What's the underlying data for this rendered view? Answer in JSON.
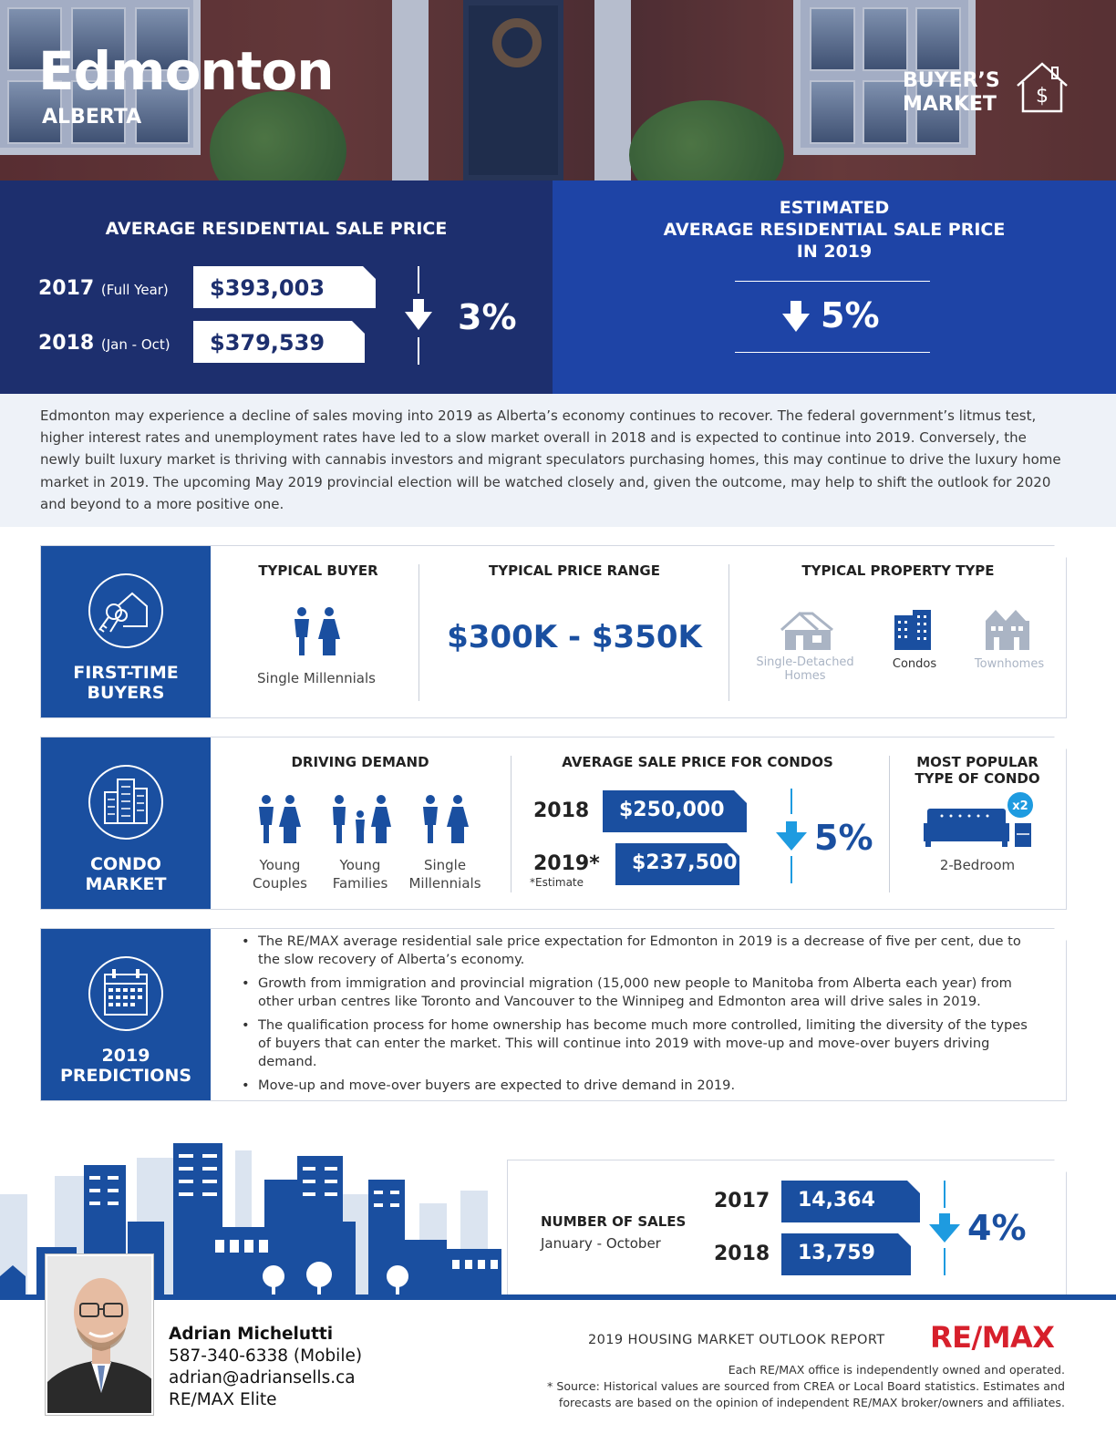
{
  "hero": {
    "city": "Edmonton",
    "province": "ALBERTA",
    "market_type_line1": "BUYER’S",
    "market_type_line2": "MARKET"
  },
  "avg_price": {
    "heading": "AVERAGE RESIDENTIAL SALE PRICE",
    "rows": [
      {
        "year": "2017",
        "period": "(Full Year)",
        "price": "$393,003"
      },
      {
        "year": "2018",
        "period": "(Jan - Oct)",
        "price": "$379,539"
      }
    ],
    "change": "3%"
  },
  "estimate": {
    "heading_line1": "ESTIMATED",
    "heading_line2": "AVERAGE RESIDENTIAL SALE PRICE",
    "heading_line3": "IN 2019",
    "change": "5%"
  },
  "summary": "Edmonton may experience a decline of sales moving into 2019 as Alberta’s economy continues to recover. The federal government’s litmus test, higher interest rates and unemployment rates have led to a slow market overall in 2018 and is expected to continue into 2019. Conversely, the newly built luxury market is thriving with cannabis investors and migrant speculators purchasing homes, this may continue to drive the luxury home market in 2019. The upcoming May 2019 provincial election will be watched closely and, given the outcome, may help to shift the outlook for 2020 and beyond to a more positive one.",
  "first_time": {
    "label_line1": "FIRST-TIME",
    "label_line2": "BUYERS",
    "typical_buyer_head": "TYPICAL BUYER",
    "typical_buyer": "Single Millennials",
    "price_range_head": "TYPICAL PRICE RANGE",
    "price_range": "$300K - $350K",
    "property_type_head": "TYPICAL PROPERTY TYPE",
    "property_types": [
      {
        "line1": "Single-Detached",
        "line2": "Homes",
        "active": false
      },
      {
        "line1": "Condos",
        "line2": "",
        "active": true
      },
      {
        "line1": "Townhomes",
        "line2": "",
        "active": false
      }
    ]
  },
  "condo": {
    "label_line1": "CONDO",
    "label_line2": "MARKET",
    "demand_head": "DRIVING DEMAND",
    "demand": [
      {
        "line1": "Young",
        "line2": "Couples"
      },
      {
        "line1": "Young",
        "line2": "Families"
      },
      {
        "line1": "Single",
        "line2": "Millennials"
      }
    ],
    "avg_head": "AVERAGE SALE PRICE FOR CONDOS",
    "rows": [
      {
        "year": "2018",
        "price": "$250,000",
        "note": ""
      },
      {
        "year": "2019*",
        "price": "$237,500",
        "note": "*Estimate"
      }
    ],
    "change": "5%",
    "popular_head_line1": "MOST POPULAR",
    "popular_head_line2": "TYPE OF CONDO",
    "popular_badge": "x2",
    "popular": "2-Bedroom"
  },
  "predictions": {
    "label_line1": "2019",
    "label_line2": "PREDICTIONS",
    "items": [
      "The RE/MAX average residential sale price expectation for Edmonton in 2019 is a decrease of five per cent, due to the slow recovery of Alberta’s economy.",
      "Growth from immigration and provincial migration (15,000 new people to Manitoba from Alberta each year) from other urban centres like Toronto and Vancouver to the Winnipeg and Edmonton area will drive sales in 2019.",
      "The qualification process for home ownership has become much more controlled, limiting the diversity of the types of buyers that can enter the market. This will continue into 2019 with move-up and move-over buyers driving demand.",
      "Move-up and move-over buyers are expected to drive demand in 2019."
    ]
  },
  "sales": {
    "head": "NUMBER OF SALES",
    "period": "January - October",
    "rows": [
      {
        "year": "2017",
        "value": "14,364"
      },
      {
        "year": "2018",
        "value": "13,759"
      }
    ],
    "change": "4%"
  },
  "agent": {
    "name": "Adrian Michelutti",
    "phone": "587-340-6338 (Mobile)",
    "email": "adrian@adriansells.ca",
    "office": "RE/MAX Elite"
  },
  "footer": {
    "report": "2019 HOUSING MARKET OUTLOOK REPORT",
    "brand_a": "RE/",
    "brand_b": "MAX",
    "disclaimer_1": "Each RE/MAX office is independently owned and operated.",
    "disclaimer_2": "* Source: Historical values are sourced from CREA or Local Board statistics. Estimates and",
    "disclaimer_3": "forecasts are based on the opinion of independent RE/MAX broker/owners and affiliates."
  },
  "colors": {
    "navy": "#1d2f6e",
    "royal": "#1e44a6",
    "brand_blue": "#1a4fa0",
    "accent_cyan": "#1e9be0",
    "remax_red": "#d7202c"
  }
}
